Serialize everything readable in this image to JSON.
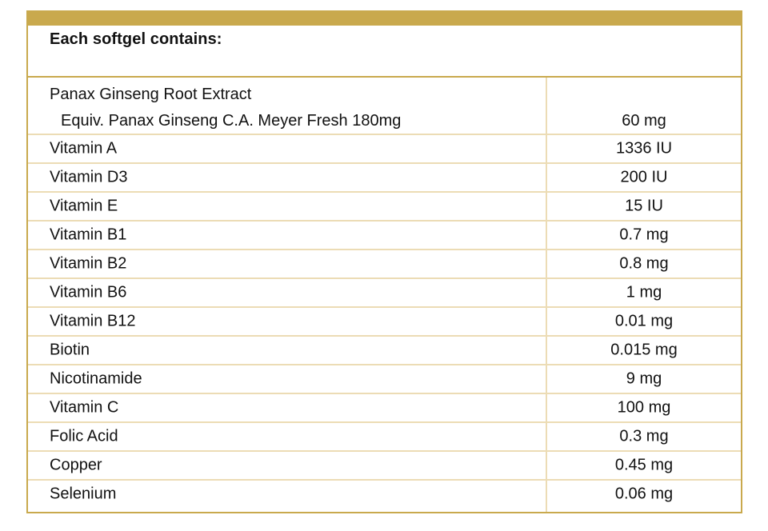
{
  "header": {
    "title": "Each softgel contains:"
  },
  "first_row": {
    "name_line1": "Panax Ginseng Root Extract",
    "name_line2": "Equiv. Panax Ginseng C.A. Meyer Fresh 180mg",
    "amount": "60 mg"
  },
  "rows": [
    {
      "name": "Vitamin A",
      "amount": "1336 IU"
    },
    {
      "name": "Vitamin D3",
      "amount": "200 IU"
    },
    {
      "name": "Vitamin E",
      "amount": "15 IU"
    },
    {
      "name": "Vitamin B1",
      "amount": "0.7 mg"
    },
    {
      "name": "Vitamin B2",
      "amount": "0.8 mg"
    },
    {
      "name": "Vitamin B6",
      "amount": "1 mg"
    },
    {
      "name": "Vitamin B12",
      "amount": "0.01 mg"
    },
    {
      "name": "Biotin",
      "amount": "0.015 mg"
    },
    {
      "name": "Nicotinamide",
      "amount": "9 mg"
    },
    {
      "name": "Vitamin C",
      "amount": "100 mg"
    },
    {
      "name": "Folic Acid",
      "amount": "0.3 mg"
    },
    {
      "name": "Copper",
      "amount": "0.45 mg"
    },
    {
      "name": "Selenium",
      "amount": "0.06 mg"
    }
  ],
  "colors": {
    "border": "#c9a94d",
    "row_divider": "#ecdcb5"
  }
}
